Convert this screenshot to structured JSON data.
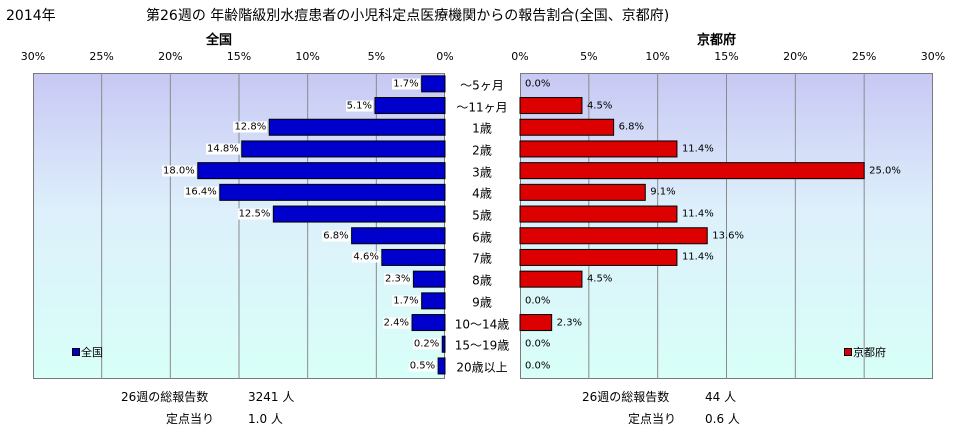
{
  "header": {
    "year": "2014年",
    "title": "第26週の 年齢階級別水痘患者の小児科定点医療機関からの報告割合(全国、京都府)"
  },
  "chart_data": [
    {
      "type": "bar",
      "orientation": "horizontal",
      "direction": "right-to-left",
      "title": "全国",
      "xlim": [
        0,
        30
      ],
      "ticks": [
        "30%",
        "25%",
        "20%",
        "15%",
        "10%",
        "5%",
        "0%"
      ],
      "tick_values": [
        30,
        25,
        20,
        15,
        10,
        5,
        0
      ],
      "categories": [
        "～5ヶ月",
        "～11ヶ月",
        "1歳",
        "2歳",
        "3歳",
        "4歳",
        "5歳",
        "6歳",
        "7歳",
        "8歳",
        "9歳",
        "10～14歳",
        "15～19歳",
        "20歳以上"
      ],
      "series": [
        {
          "name": "全国",
          "values": [
            1.7,
            5.1,
            12.8,
            14.8,
            18.0,
            16.4,
            12.5,
            6.8,
            4.6,
            2.3,
            1.7,
            2.4,
            0.2,
            0.5
          ],
          "labels": [
            "1.7%",
            "5.1%",
            "12.8%",
            "14.8%",
            "18.0%",
            "16.4%",
            "12.5%",
            "6.8%",
            "4.6%",
            "2.3%",
            "1.7%",
            "2.4%",
            "0.2%",
            "0.5%"
          ],
          "color": "#0000cc"
        }
      ],
      "legend": "bottom-left",
      "grid": true
    },
    {
      "type": "bar",
      "orientation": "horizontal",
      "direction": "left-to-right",
      "title": "京都府",
      "xlim": [
        0,
        30
      ],
      "ticks": [
        "0%",
        "5%",
        "10%",
        "15%",
        "20%",
        "25%",
        "30%"
      ],
      "tick_values": [
        0,
        5,
        10,
        15,
        20,
        25,
        30
      ],
      "categories": [
        "～5ヶ月",
        "～11ヶ月",
        "1歳",
        "2歳",
        "3歳",
        "4歳",
        "5歳",
        "6歳",
        "7歳",
        "8歳",
        "9歳",
        "10～14歳",
        "15～19歳",
        "20歳以上"
      ],
      "series": [
        {
          "name": "京都府",
          "values": [
            0.0,
            4.5,
            6.8,
            11.4,
            25.0,
            9.1,
            11.4,
            13.6,
            11.4,
            4.5,
            0.0,
            2.3,
            0.0,
            0.0
          ],
          "labels": [
            "0.0%",
            "4.5%",
            "6.8%",
            "11.4%",
            "25.0%",
            "9.1%",
            "11.4%",
            "13.6%",
            "11.4%",
            "4.5%",
            "0.0%",
            "2.3%",
            "0.0%",
            "0.0%"
          ],
          "color": "#dd0000"
        }
      ],
      "legend": "bottom-right",
      "grid": true
    }
  ],
  "footer": {
    "left": {
      "total_label": "26週の総報告数",
      "total_value": "3241 人",
      "per_label": "定点当り",
      "per_value": "1.0 人"
    },
    "right": {
      "total_label": "26週の総報告数",
      "total_value": "44 人",
      "per_label": "定点当り",
      "per_value": "0.6 人"
    }
  }
}
